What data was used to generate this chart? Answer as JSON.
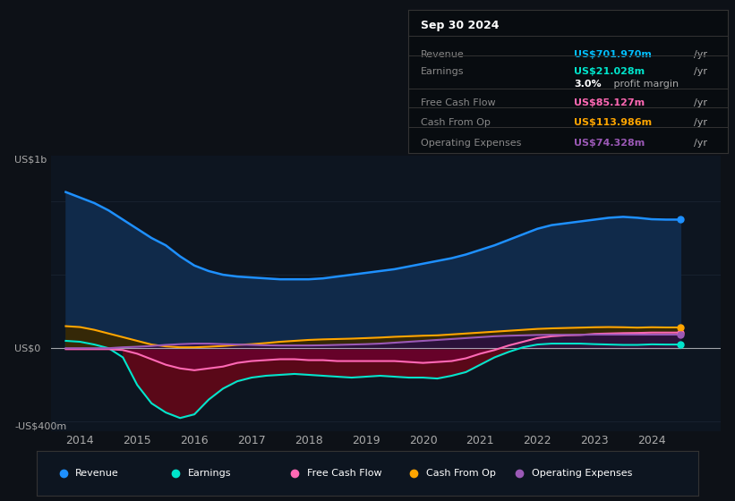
{
  "background_color": "#0d1117",
  "plot_bg_color": "#0d1520",
  "title_box": {
    "date": "Sep 30 2024",
    "rows": [
      {
        "label": "Revenue",
        "value": "US$701.970m",
        "unit": "/yr",
        "color": "#00bfff"
      },
      {
        "label": "Earnings",
        "value": "US$21.028m",
        "unit": "/yr",
        "color": "#00e5cc"
      },
      {
        "label": "",
        "value": "3.0%",
        "unit": " profit margin",
        "color": "#ffffff"
      },
      {
        "label": "Free Cash Flow",
        "value": "US$85.127m",
        "unit": "/yr",
        "color": "#ff69b4"
      },
      {
        "label": "Cash From Op",
        "value": "US$113.986m",
        "unit": "/yr",
        "color": "#ffa500"
      },
      {
        "label": "Operating Expenses",
        "value": "US$74.328m",
        "unit": "/yr",
        "color": "#9b59b6"
      }
    ]
  },
  "ylabel_top": "US$1b",
  "ylabel_zero": "US$0",
  "ylabel_bottom": "-US$400m",
  "xlim": [
    2013.5,
    2025.2
  ],
  "ylim": [
    -450,
    1050
  ],
  "xticks": [
    2014,
    2015,
    2016,
    2017,
    2018,
    2019,
    2020,
    2021,
    2022,
    2023,
    2024
  ],
  "colors": {
    "revenue": "#1e90ff",
    "revenue_fill": "#1a3a5c",
    "earnings": "#00e5cc",
    "free_cash_flow": "#ff69b4",
    "cash_from_op": "#ffa500",
    "op_expenses": "#9b59b6"
  },
  "legend": [
    {
      "label": "Revenue",
      "color": "#1e90ff"
    },
    {
      "label": "Earnings",
      "color": "#00e5cc"
    },
    {
      "label": "Free Cash Flow",
      "color": "#ff69b4"
    },
    {
      "label": "Cash From Op",
      "color": "#ffa500"
    },
    {
      "label": "Operating Expenses",
      "color": "#9b59b6"
    }
  ],
  "years": [
    2013.75,
    2014,
    2014.25,
    2014.5,
    2014.75,
    2015,
    2015.25,
    2015.5,
    2015.75,
    2016,
    2016.25,
    2016.5,
    2016.75,
    2017,
    2017.25,
    2017.5,
    2017.75,
    2018,
    2018.25,
    2018.5,
    2018.75,
    2019,
    2019.25,
    2019.5,
    2019.75,
    2020,
    2020.25,
    2020.5,
    2020.75,
    2021,
    2021.25,
    2021.5,
    2021.75,
    2022,
    2022.25,
    2022.5,
    2022.75,
    2023,
    2023.25,
    2023.5,
    2023.75,
    2024,
    2024.25,
    2024.5
  ],
  "revenue": [
    850,
    820,
    790,
    750,
    700,
    650,
    600,
    560,
    500,
    450,
    420,
    400,
    390,
    385,
    380,
    375,
    375,
    375,
    380,
    390,
    400,
    410,
    420,
    430,
    445,
    460,
    475,
    490,
    510,
    535,
    560,
    590,
    620,
    650,
    670,
    680,
    690,
    700,
    710,
    715,
    710,
    702,
    700,
    700
  ],
  "earnings": [
    40,
    35,
    20,
    0,
    -50,
    -200,
    -300,
    -350,
    -380,
    -360,
    -280,
    -220,
    -180,
    -160,
    -150,
    -145,
    -140,
    -145,
    -150,
    -155,
    -160,
    -155,
    -150,
    -155,
    -160,
    -160,
    -165,
    -150,
    -130,
    -90,
    -50,
    -20,
    5,
    20,
    25,
    25,
    25,
    22,
    20,
    18,
    18,
    21,
    20,
    20
  ],
  "free_cash_flow": [
    -5,
    -5,
    -5,
    -5,
    -10,
    -30,
    -60,
    -90,
    -110,
    -120,
    -110,
    -100,
    -80,
    -70,
    -65,
    -60,
    -60,
    -65,
    -65,
    -70,
    -70,
    -70,
    -70,
    -70,
    -75,
    -80,
    -75,
    -70,
    -55,
    -30,
    -10,
    15,
    35,
    55,
    65,
    70,
    72,
    78,
    80,
    82,
    83,
    85,
    85,
    85
  ],
  "cash_from_op": [
    120,
    115,
    100,
    80,
    60,
    40,
    20,
    10,
    5,
    5,
    8,
    12,
    18,
    22,
    28,
    35,
    40,
    45,
    48,
    50,
    52,
    55,
    58,
    62,
    65,
    68,
    70,
    75,
    80,
    85,
    90,
    95,
    100,
    105,
    108,
    110,
    112,
    114,
    115,
    114,
    112,
    114,
    113,
    113
  ],
  "op_expenses": [
    0,
    0,
    0,
    0,
    5,
    8,
    12,
    18,
    22,
    25,
    25,
    22,
    20,
    18,
    16,
    15,
    15,
    15,
    16,
    18,
    20,
    22,
    25,
    30,
    35,
    40,
    45,
    50,
    55,
    60,
    65,
    68,
    70,
    72,
    73,
    73,
    73,
    74,
    74,
    74,
    74,
    74,
    74,
    74
  ]
}
